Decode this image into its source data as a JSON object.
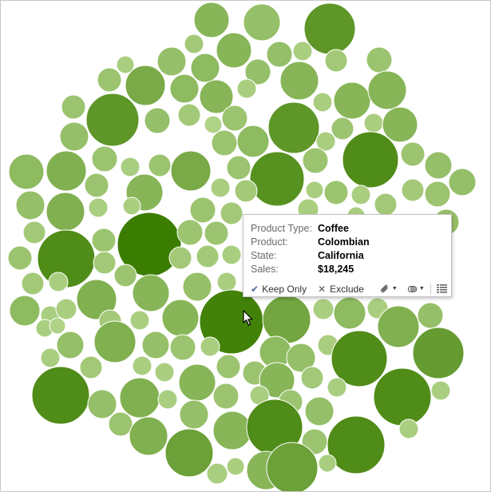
{
  "chart_data": {
    "type": "bubble",
    "color_scale": {
      "low": "#c6e2a0",
      "high": "#3b7d00"
    },
    "highlighted": {
      "product_type": "Coffee",
      "product": "Colombian",
      "state": "California",
      "sales": 18245
    }
  },
  "tooltip": {
    "rows": [
      {
        "key": "Product Type:",
        "value": "Coffee"
      },
      {
        "key": "Product:",
        "value": "Colombian"
      },
      {
        "key": "State:",
        "value": "California"
      },
      {
        "key": "Sales:",
        "value": "$18,245"
      }
    ],
    "actions": {
      "keep_only": "Keep Only",
      "exclude": "Exclude"
    }
  },
  "icons": [
    "check-icon",
    "x-icon",
    "paperclip-icon",
    "group-icon",
    "view-data-icon",
    "chevron-down-icon",
    "mouse-pointer-icon"
  ]
}
